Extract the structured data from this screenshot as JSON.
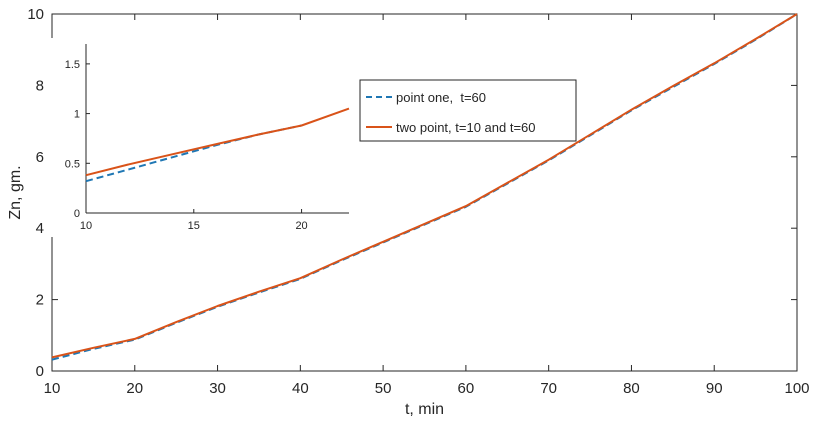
{
  "colors": {
    "series_one": "#1f77b4",
    "series_two": "#d95319",
    "axis": "#262626"
  },
  "chart_data": [
    {
      "type": "line",
      "title": "",
      "xlabel": "t, min",
      "ylabel": "Zn, gm.",
      "xlim": [
        10,
        100
      ],
      "ylim": [
        0,
        10
      ],
      "xticks": [
        10,
        20,
        30,
        40,
        50,
        60,
        70,
        80,
        90,
        100
      ],
      "yticks": [
        0,
        2,
        4,
        6,
        8,
        10
      ],
      "grid": false,
      "legend_position": "upper-middle",
      "series": [
        {
          "name": "point one,  t=60",
          "style": "dashed",
          "x": [
            10,
            15,
            20,
            25,
            30,
            35,
            40,
            45,
            50,
            55,
            60,
            65,
            70,
            75,
            80,
            85,
            90,
            95,
            100
          ],
          "y": [
            0.32,
            0.62,
            0.88,
            1.35,
            1.8,
            2.2,
            2.58,
            3.1,
            3.6,
            4.1,
            4.6,
            5.25,
            5.9,
            6.6,
            7.3,
            7.95,
            8.6,
            9.28,
            10.0
          ]
        },
        {
          "name": "two point, t=10 and t=60",
          "style": "solid",
          "x": [
            10,
            15,
            20,
            25,
            30,
            35,
            40,
            45,
            50,
            55,
            60,
            65,
            70,
            75,
            80,
            85,
            90,
            95,
            100
          ],
          "y": [
            0.38,
            0.65,
            0.9,
            1.37,
            1.82,
            2.22,
            2.6,
            3.12,
            3.62,
            4.12,
            4.62,
            5.27,
            5.92,
            6.62,
            7.32,
            7.98,
            8.62,
            9.3,
            10.0
          ]
        }
      ]
    },
    {
      "type": "line",
      "title": "",
      "xlabel": "",
      "ylabel": "",
      "xlim": [
        10,
        22.2
      ],
      "ylim": [
        0,
        1.7
      ],
      "xticks": [
        10,
        15,
        20
      ],
      "yticks": [
        0,
        0.5,
        1,
        1.5
      ],
      "yticklabels": [
        "0",
        "0.5",
        "1",
        "1.5"
      ],
      "grid": false,
      "series": [
        {
          "name": "point one,  t=60",
          "style": "dashed",
          "x": [
            10,
            12,
            14,
            16,
            18,
            20
          ],
          "y": [
            0.32,
            0.44,
            0.56,
            0.68,
            0.79,
            0.88
          ]
        },
        {
          "name": "two point, t=10 and t=60",
          "style": "solid",
          "x": [
            10,
            12,
            14,
            16,
            18,
            20,
            22.2
          ],
          "y": [
            0.38,
            0.49,
            0.59,
            0.69,
            0.79,
            0.88,
            1.05
          ]
        }
      ]
    }
  ],
  "legend": {
    "items": [
      {
        "label": "point one,  t=60",
        "style": "dashed"
      },
      {
        "label": "two point, t=10 and t=60",
        "style": "solid"
      }
    ]
  }
}
